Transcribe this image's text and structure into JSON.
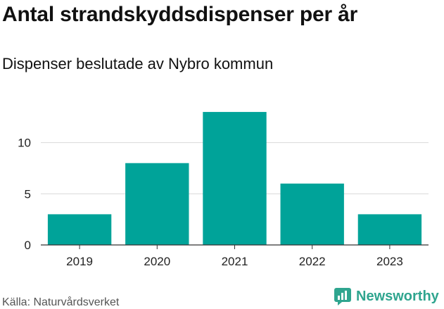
{
  "title": "Antal strandskyddsdispenser per år",
  "subtitle": "Dispenser beslutade av Nybro kommun",
  "source": "Källa: Naturvårdsverket",
  "brand": {
    "name": "Newsworthy",
    "icon": "newsworthy-logo-icon",
    "color": "#2fa58f"
  },
  "colors": {
    "bar": "#00a399",
    "grid": "#d9d9d9",
    "axis": "#333333"
  },
  "chart_data": {
    "type": "bar",
    "title": "Antal strandskyddsdispenser per år",
    "subtitle": "Dispenser beslutade av Nybro kommun",
    "xlabel": "",
    "ylabel": "",
    "categories": [
      "2019",
      "2020",
      "2021",
      "2022",
      "2023"
    ],
    "values": [
      3,
      8,
      13,
      6,
      3
    ],
    "ylim": [
      0,
      15
    ],
    "yticks": [
      0,
      5,
      10
    ],
    "ytick_labels": [
      "0",
      "5",
      "10"
    ],
    "grid": true,
    "legend": "none"
  }
}
